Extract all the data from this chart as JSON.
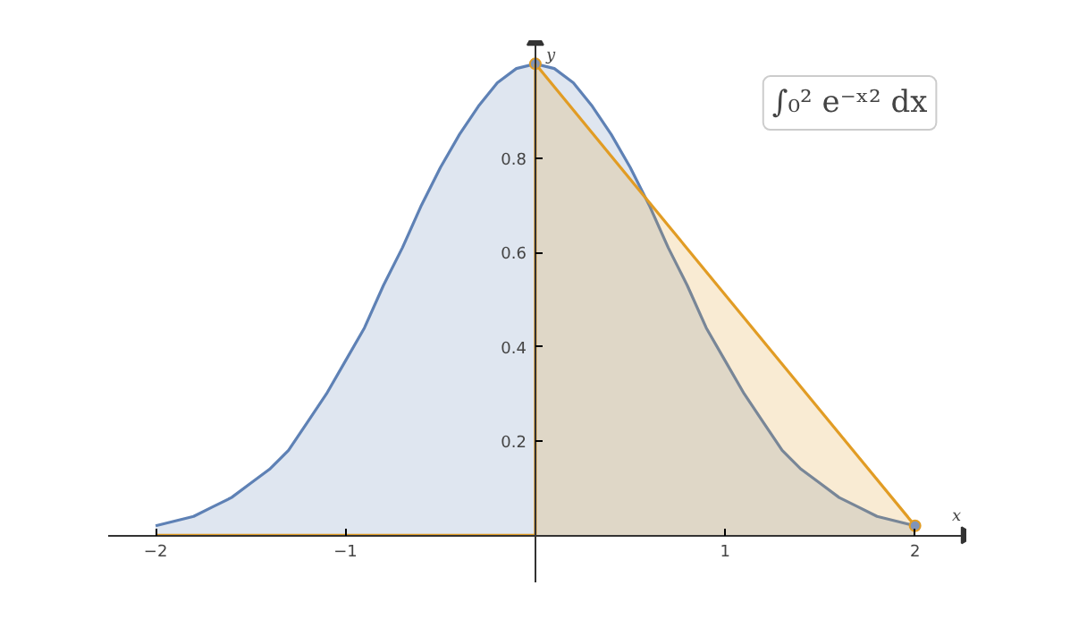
{
  "chart_data": {
    "type": "area",
    "xlabel": "x",
    "ylabel": "y",
    "series": [
      {
        "color": "#5e81b5",
        "x": [
          -2,
          -1.9,
          -1.8,
          -1.7,
          -1.6,
          -1.5,
          -1.4,
          -1.3,
          -1.2,
          -1.1,
          -1,
          -0.9,
          -0.8,
          -0.7,
          -0.6,
          -0.5,
          -0.4,
          -0.3,
          -0.2,
          -0.1,
          0,
          0.1,
          0.2,
          0.3,
          0.4,
          0.5,
          0.6,
          0.7,
          0.8,
          0.9,
          1,
          1.1,
          1.2,
          1.3,
          1.4,
          1.5,
          1.6,
          1.7,
          1.8,
          1.9,
          2
        ],
        "values": [
          0.02,
          0.03,
          0.04,
          0.06,
          0.08,
          0.11,
          0.14,
          0.18,
          0.24,
          0.3,
          0.37,
          0.44,
          0.53,
          0.61,
          0.7,
          0.78,
          0.85,
          0.91,
          0.96,
          0.99,
          1,
          0.99,
          0.96,
          0.91,
          0.85,
          0.78,
          0.7,
          0.61,
          0.53,
          0.44,
          0.37,
          0.3,
          0.24,
          0.18,
          0.14,
          0.11,
          0.08,
          0.06,
          0.04,
          0.03,
          0.02
        ]
      },
      {
        "color": "#e19c24",
        "marker": "circle",
        "x": [
          0,
          2
        ],
        "values": [
          1,
          0.02
        ]
      },
      {
        "type": "line",
        "color": "#e19c24",
        "x": [
          0,
          0
        ],
        "values": [
          0,
          1
        ]
      },
      {
        "type": "line",
        "color": "#e19c24",
        "x": [
          -2,
          0
        ],
        "values": [
          0,
          0
        ]
      }
    ],
    "xlim": [
      -2.25,
      2.27
    ],
    "ylim": [
      -0.1,
      1.05
    ],
    "xticks": [
      -2,
      -1,
      1,
      2
    ],
    "yticks": [
      0.2,
      0.4,
      0.6,
      0.8
    ],
    "grid": false,
    "annotations": [
      {
        "text": "∫₀² e⁻ˣ² dx"
      }
    ]
  }
}
